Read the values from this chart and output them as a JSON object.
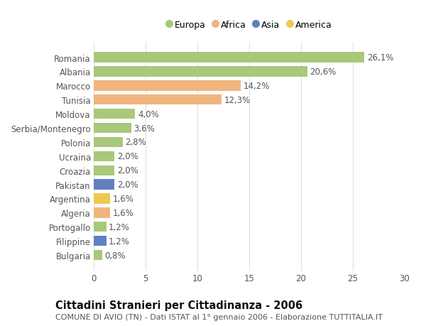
{
  "countries": [
    "Romania",
    "Albania",
    "Marocco",
    "Tunisia",
    "Moldova",
    "Serbia/Montenegro",
    "Polonia",
    "Ucraina",
    "Croazia",
    "Pakistan",
    "Argentina",
    "Algeria",
    "Portogallo",
    "Filippine",
    "Bulgaria"
  ],
  "values": [
    26.1,
    20.6,
    14.2,
    12.3,
    4.0,
    3.6,
    2.8,
    2.0,
    2.0,
    2.0,
    1.6,
    1.6,
    1.2,
    1.2,
    0.8
  ],
  "labels": [
    "26,1%",
    "20,6%",
    "14,2%",
    "12,3%",
    "4,0%",
    "3,6%",
    "2,8%",
    "2,0%",
    "2,0%",
    "2,0%",
    "1,6%",
    "1,6%",
    "1,2%",
    "1,2%",
    "0,8%"
  ],
  "continents": [
    "Europa",
    "Europa",
    "Africa",
    "Africa",
    "Europa",
    "Europa",
    "Europa",
    "Europa",
    "Europa",
    "Asia",
    "America",
    "Africa",
    "Europa",
    "Asia",
    "Europa"
  ],
  "colors": {
    "Europa": "#a8c87a",
    "Africa": "#f0b47e",
    "Asia": "#6080c0",
    "America": "#f0c850"
  },
  "legend_order": [
    "Europa",
    "Africa",
    "Asia",
    "America"
  ],
  "xlim": [
    0,
    30
  ],
  "xticks": [
    0,
    5,
    10,
    15,
    20,
    25,
    30
  ],
  "title": "Cittadini Stranieri per Cittadinanza - 2006",
  "subtitle": "COMUNE DI AVIO (TN) - Dati ISTAT al 1° gennaio 2006 - Elaborazione TUTTITALIA.IT",
  "background_color": "#ffffff",
  "grid_color": "#e0e0e0",
  "bar_height": 0.72,
  "label_fontsize": 8.5,
  "tick_fontsize": 8.5,
  "title_fontsize": 10.5,
  "subtitle_fontsize": 8.0
}
